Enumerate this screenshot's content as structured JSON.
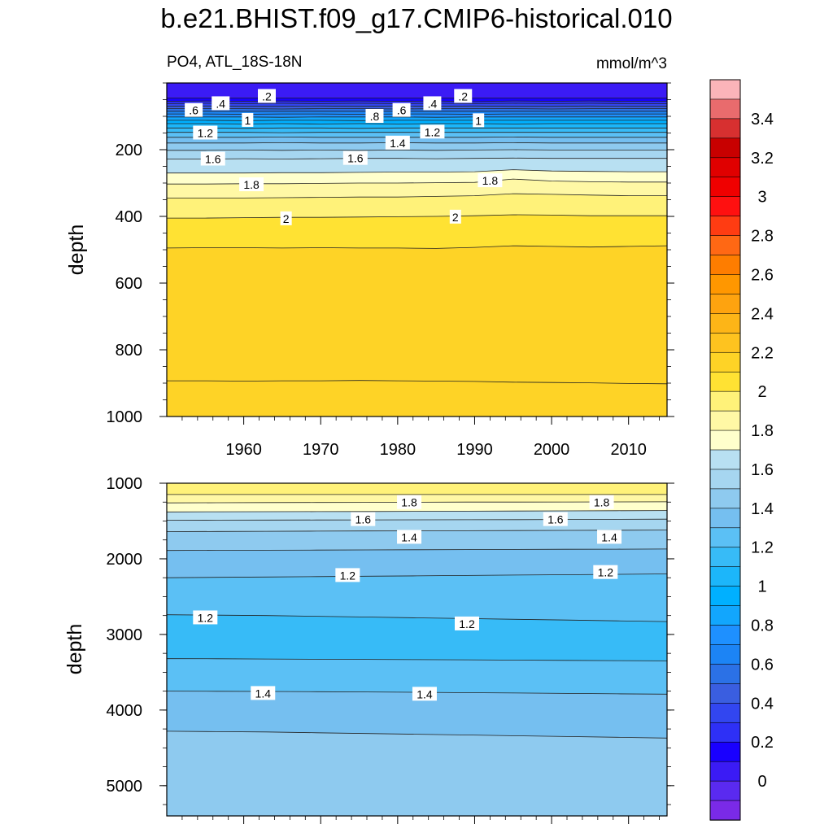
{
  "title": "b.e21.BHIST.f09_g17.CMIP6-historical.010",
  "subtitle_left": "PO4, ATL_18S-18N",
  "subtitle_right": "mmol/m^3",
  "chart_data": [
    {
      "type": "heatmap",
      "panel": "upper",
      "ylabel": "depth",
      "xlabel": "",
      "xlim": [
        1950,
        2015
      ],
      "ylim": [
        1000,
        0
      ],
      "x_ticks": [
        1960,
        1970,
        1980,
        1990,
        2000,
        2010
      ],
      "y_ticks": [
        200,
        400,
        600,
        800,
        1000
      ],
      "contour_levels": [
        0.1,
        0.2,
        0.3,
        0.4,
        0.5,
        0.6,
        0.7,
        0.8,
        0.9,
        1.0,
        1.1,
        1.2,
        1.3,
        1.4,
        1.5,
        1.6,
        1.7,
        1.8,
        1.9,
        2.0,
        2.1
      ],
      "contour_depths": [
        {
          "level": 0.1,
          "depths": [
            45,
            45,
            45,
            45,
            45,
            45,
            45,
            45,
            45,
            45,
            45,
            45,
            45,
            45
          ]
        },
        {
          "level": 0.2,
          "depths": [
            55,
            54,
            55,
            54,
            55,
            54,
            55,
            54,
            56,
            54,
            55,
            54,
            55,
            55
          ]
        },
        {
          "level": 0.3,
          "depths": [
            62,
            61,
            62,
            61,
            62,
            61,
            62,
            61,
            62,
            61,
            62,
            61,
            62,
            62
          ]
        },
        {
          "level": 0.4,
          "depths": [
            70,
            69,
            70,
            70,
            69,
            70,
            69,
            70,
            69,
            70,
            70,
            69,
            70,
            70
          ]
        },
        {
          "level": 0.5,
          "depths": [
            77,
            77,
            77,
            78,
            77,
            77,
            78,
            77,
            77,
            77,
            78,
            77,
            77,
            77
          ]
        },
        {
          "level": 0.6,
          "depths": [
            85,
            85,
            85,
            85,
            85,
            85,
            85,
            85,
            85,
            85,
            85,
            85,
            85,
            85
          ]
        },
        {
          "level": 0.7,
          "depths": [
            93,
            93,
            94,
            93,
            93,
            94,
            93,
            93,
            94,
            93,
            93,
            93,
            93,
            93
          ]
        },
        {
          "level": 0.8,
          "depths": [
            102,
            102,
            102,
            103,
            102,
            102,
            102,
            103,
            102,
            102,
            102,
            102,
            102,
            102
          ]
        },
        {
          "level": 0.9,
          "depths": [
            112,
            112,
            113,
            112,
            112,
            113,
            112,
            112,
            112,
            112,
            112,
            112,
            112,
            112
          ]
        },
        {
          "level": 1.0,
          "depths": [
            122,
            122,
            123,
            122,
            123,
            122,
            123,
            122,
            122,
            123,
            122,
            122,
            122,
            122
          ]
        },
        {
          "level": 1.1,
          "depths": [
            135,
            135,
            136,
            135,
            135,
            136,
            135,
            135,
            135,
            135,
            135,
            135,
            135,
            135
          ]
        },
        {
          "level": 1.2,
          "depths": [
            148,
            148,
            148,
            149,
            148,
            148,
            148,
            148,
            148,
            148,
            148,
            148,
            148,
            148
          ]
        },
        {
          "level": 1.3,
          "depths": [
            163,
            163,
            163,
            162,
            163,
            163,
            163,
            163,
            163,
            162,
            163,
            163,
            163,
            163
          ]
        },
        {
          "level": 1.4,
          "depths": [
            180,
            180,
            180,
            179,
            180,
            180,
            179,
            180,
            180,
            179,
            180,
            180,
            180,
            180
          ]
        },
        {
          "level": 1.5,
          "depths": [
            202,
            202,
            201,
            202,
            201,
            202,
            201,
            202,
            201,
            200,
            201,
            201,
            201,
            201
          ]
        },
        {
          "level": 1.6,
          "depths": [
            228,
            228,
            227,
            228,
            227,
            226,
            226,
            227,
            226,
            225,
            226,
            226,
            226,
            226
          ]
        },
        {
          "level": 1.7,
          "depths": [
            270,
            270,
            270,
            269,
            269,
            268,
            267,
            267,
            266,
            260,
            264,
            265,
            266,
            266
          ]
        },
        {
          "level": 1.8,
          "depths": [
            303,
            303,
            302,
            302,
            301,
            300,
            300,
            299,
            298,
            288,
            294,
            296,
            297,
            297
          ]
        },
        {
          "level": 1.9,
          "depths": [
            345,
            345,
            345,
            344,
            343,
            342,
            342,
            340,
            338,
            332,
            334,
            336,
            338,
            338
          ]
        },
        {
          "level": 2.0,
          "depths": [
            405,
            405,
            404,
            403,
            403,
            402,
            401,
            400,
            398,
            395,
            396,
            398,
            398,
            398
          ]
        },
        {
          "level": 2.1,
          "depths": [
            495,
            494,
            494,
            495,
            494,
            495,
            495,
            496,
            493,
            488,
            490,
            492,
            490,
            488
          ]
        },
        {
          "level": 2.1,
          "depths": [
            893,
            893,
            894,
            893,
            893,
            892,
            893,
            894,
            895,
            897,
            898,
            899,
            901,
            902
          ]
        }
      ],
      "contour_labels": [
        {
          "text": ".2",
          "x": 1963.0,
          "y": 40
        },
        {
          "text": ".2",
          "x": 1988.5,
          "y": 40
        },
        {
          "text": ".4",
          "x": 1957.0,
          "y": 62
        },
        {
          "text": ".4",
          "x": 1984.5,
          "y": 62
        },
        {
          "text": ".6",
          "x": 1953.5,
          "y": 82
        },
        {
          "text": ".6",
          "x": 1980.5,
          "y": 82
        },
        {
          "text": ".8",
          "x": 1977.0,
          "y": 100
        },
        {
          "text": "1",
          "x": 1960.5,
          "y": 112
        },
        {
          "text": "1",
          "x": 1990.5,
          "y": 113
        },
        {
          "text": "1.2",
          "x": 1955.0,
          "y": 150
        },
        {
          "text": "1.2",
          "x": 1984.5,
          "y": 147
        },
        {
          "text": "1.4",
          "x": 1980.0,
          "y": 180
        },
        {
          "text": "1.6",
          "x": 1956.0,
          "y": 228
        },
        {
          "text": "1.6",
          "x": 1974.5,
          "y": 226
        },
        {
          "text": "1.8",
          "x": 1961.0,
          "y": 305
        },
        {
          "text": "1.8",
          "x": 1992.0,
          "y": 293
        },
        {
          "text": "2",
          "x": 1965.5,
          "y": 407
        },
        {
          "text": "2",
          "x": 1987.5,
          "y": 402
        }
      ]
    },
    {
      "type": "heatmap",
      "panel": "lower",
      "ylabel": "depth",
      "xlabel": "",
      "xlim": [
        1950,
        2015
      ],
      "ylim": [
        5400,
        1000
      ],
      "y_ticks": [
        1000,
        2000,
        3000,
        4000,
        5000
      ],
      "contour_levels": [
        1.9,
        1.8,
        1.7,
        1.6,
        1.5,
        1.4,
        1.3,
        1.2,
        1.1,
        1.2,
        1.3,
        1.4,
        1.5
      ],
      "contour_depths": [
        {
          "level": 1.9,
          "depths": [
            1150,
            1150,
            1150,
            1150,
            1150,
            1150,
            1150,
            1150,
            1150,
            1150,
            1150
          ]
        },
        {
          "level": 1.8,
          "depths": [
            1260,
            1258,
            1256,
            1255,
            1254,
            1252,
            1250,
            1250,
            1248,
            1247,
            1246
          ]
        },
        {
          "level": 1.7,
          "depths": [
            1380,
            1378,
            1376,
            1375,
            1374,
            1372,
            1370,
            1368,
            1366,
            1364,
            1362
          ]
        },
        {
          "level": 1.6,
          "depths": [
            1490,
            1488,
            1487,
            1486,
            1485,
            1484,
            1483,
            1482,
            1480,
            1478,
            1476
          ]
        },
        {
          "level": 1.5,
          "depths": [
            1640,
            1638,
            1636,
            1634,
            1632,
            1630,
            1628,
            1626,
            1624,
            1622,
            1620
          ]
        },
        {
          "level": 1.4,
          "depths": [
            1890,
            1888,
            1886,
            1884,
            1882,
            1880,
            1878,
            1876,
            1874,
            1872,
            1870
          ]
        },
        {
          "level": 1.3,
          "depths": [
            2250,
            2245,
            2240,
            2235,
            2230,
            2225,
            2220,
            2215,
            2210,
            2205,
            2200
          ]
        },
        {
          "level": 1.2,
          "depths": [
            2740,
            2745,
            2750,
            2760,
            2770,
            2780,
            2790,
            2800,
            2810,
            2820,
            2830
          ]
        },
        {
          "level": 1.2,
          "depths": [
            3320,
            3322,
            3325,
            3328,
            3330,
            3333,
            3336,
            3340,
            3343,
            3346,
            3350
          ]
        },
        {
          "level": 1.3,
          "depths": [
            3750,
            3752,
            3754,
            3757,
            3760,
            3765,
            3770,
            3775,
            3780,
            3785,
            3790
          ]
        },
        {
          "level": 1.4,
          "depths": [
            4280,
            4285,
            4290,
            4300,
            4310,
            4320,
            4330,
            4340,
            4350,
            4360,
            4370
          ]
        }
      ],
      "contour_labels": [
        {
          "text": "1.8",
          "x": 1981.5,
          "y": 1255
        },
        {
          "text": "1.8",
          "x": 2006.5,
          "y": 1255
        },
        {
          "text": "1.6",
          "x": 1975.5,
          "y": 1480
        },
        {
          "text": "1.6",
          "x": 2000.5,
          "y": 1480
        },
        {
          "text": "1.4",
          "x": 1981.5,
          "y": 1715
        },
        {
          "text": "1.4",
          "x": 2007.5,
          "y": 1715
        },
        {
          "text": "1.2",
          "x": 1973.5,
          "y": 2220
        },
        {
          "text": "1.2",
          "x": 2007.0,
          "y": 2180
        },
        {
          "text": "1.2",
          "x": 1955.0,
          "y": 2780
        },
        {
          "text": "1.2",
          "x": 1989.0,
          "y": 2860
        },
        {
          "text": "1.4",
          "x": 1962.5,
          "y": 3780
        },
        {
          "text": "1.4",
          "x": 1983.5,
          "y": 3790
        }
      ]
    }
  ],
  "colorbar": {
    "tick_labels": [
      "3.4",
      "3.2",
      "3",
      "2.8",
      "2.6",
      "2.4",
      "2.2",
      "2",
      "1.8",
      "1.6",
      "1.4",
      "1.2",
      "1",
      "0.8",
      "0.6",
      "0.4",
      "0.2",
      "0"
    ],
    "colors": [
      "#fbb4b9",
      "#e96b6d",
      "#d73030",
      "#c80000",
      "#e00000",
      "#f00000",
      "#ff1010",
      "#ff3c12",
      "#ff6814",
      "#fe7d00",
      "#ff9700",
      "#fea30f",
      "#fdb517",
      "#fec31f",
      "#fed326",
      "#ffe233",
      "#fff279",
      "#fff8a5",
      "#ffffcc",
      "#b8e0f2",
      "#a6d6f0",
      "#8ecaef",
      "#75bff0",
      "#5bc0f5",
      "#37bbf7",
      "#1cb6fa",
      "#00b0ff",
      "#12a6fd",
      "#1e90ff",
      "#1c84f5",
      "#2b71e6",
      "#3a5ee0",
      "#3246f0",
      "#2e30f6",
      "#1900ff",
      "#3b1bf5",
      "#5a2af0",
      "#7a2ae7"
    ]
  }
}
